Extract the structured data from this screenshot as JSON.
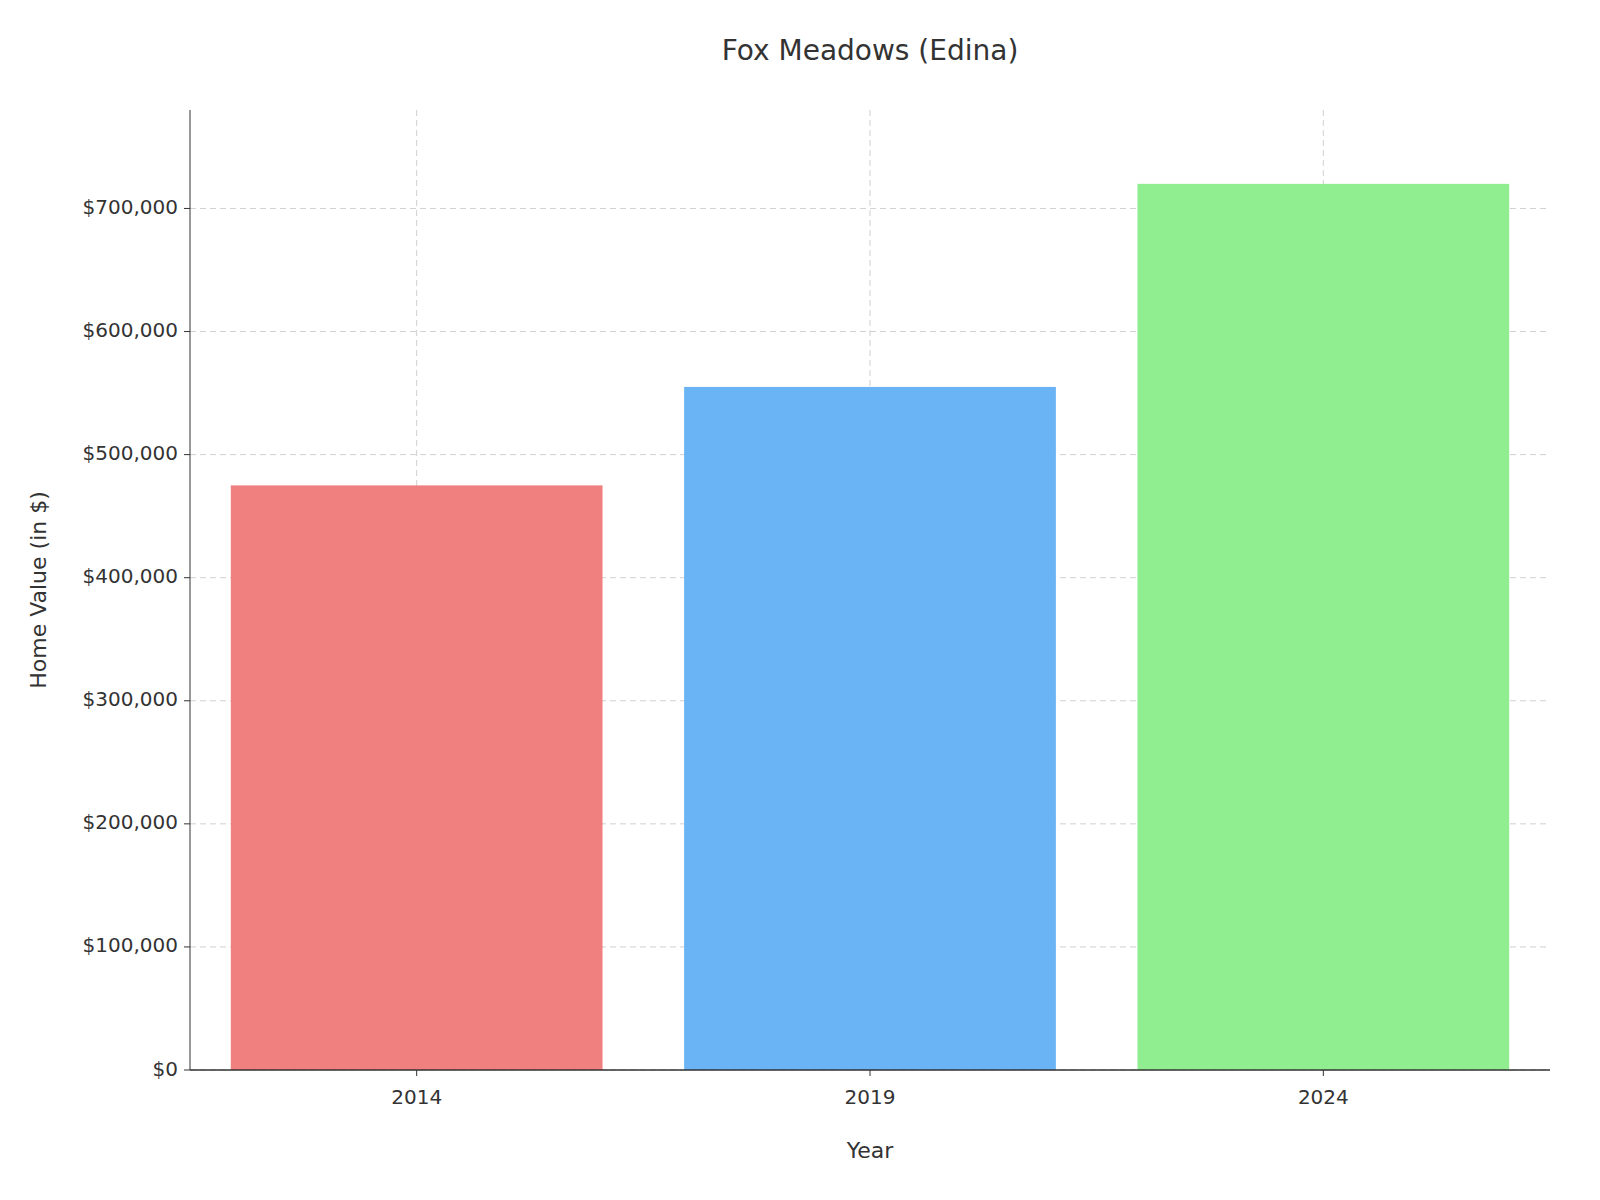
{
  "chart_data": {
    "type": "bar",
    "title": "Fox Meadows (Edina)",
    "categories": [
      "2014",
      "2019",
      "2024"
    ],
    "values": [
      475000,
      555000,
      720000
    ],
    "colors": [
      "#F08080",
      "#6AB4F5",
      "#90EE90"
    ],
    "xlabel": "Year",
    "ylabel": "Home Value (in $)",
    "ylim": [
      0,
      780000
    ],
    "yticks": [
      {
        "value": 0,
        "label": "$0"
      },
      {
        "value": 100000,
        "label": "$100,000"
      },
      {
        "value": 200000,
        "label": "$200,000"
      },
      {
        "value": 300000,
        "label": "$300,000"
      },
      {
        "value": 400000,
        "label": "$400,000"
      },
      {
        "value": 500000,
        "label": "$500,000"
      },
      {
        "value": 600000,
        "label": "$600,000"
      },
      {
        "value": 700000,
        "label": "$700,000"
      }
    ],
    "grid": true
  }
}
